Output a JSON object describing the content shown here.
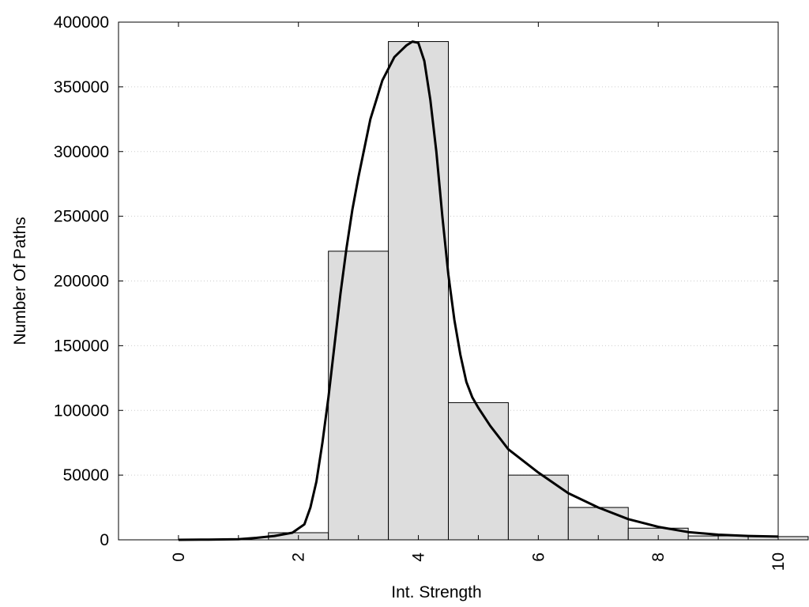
{
  "chart_data": {
    "type": "bar",
    "title": "",
    "xlabel": "Int. Strength",
    "ylabel": "Number Of Paths",
    "xlim": [
      -1,
      10
    ],
    "ylim": [
      0,
      400000
    ],
    "x_ticks": [
      "0",
      "2",
      "4",
      "6",
      "8",
      "10"
    ],
    "y_ticks": [
      "0",
      "50000",
      "100000",
      "150000",
      "200000",
      "250000",
      "300000",
      "350000",
      "400000"
    ],
    "grid": "horizontal dotted",
    "legend": "none",
    "colors": {
      "bar_fill": "#dddddd",
      "bar_stroke": "#000000",
      "curve": "#000000",
      "grid": "#cccccc"
    },
    "bars": {
      "x": [
        0,
        1,
        2,
        3,
        4,
        5,
        6,
        7,
        8,
        9,
        10
      ],
      "values": [
        0,
        0,
        5500,
        223000,
        385000,
        106000,
        50000,
        25000,
        9000,
        3000,
        2500
      ],
      "width": 1
    },
    "curve": {
      "type": "line",
      "x": [
        0,
        0.5,
        1,
        1.3,
        1.6,
        1.9,
        2.1,
        2.2,
        2.3,
        2.4,
        2.5,
        2.6,
        2.7,
        2.8,
        2.9,
        3.0,
        3.2,
        3.4,
        3.6,
        3.8,
        3.9,
        4.0,
        4.1,
        4.2,
        4.3,
        4.4,
        4.5,
        4.6,
        4.7,
        4.8,
        4.9,
        5.0,
        5.2,
        5.5,
        6.0,
        6.5,
        7.0,
        7.5,
        8.0,
        8.5,
        9.0,
        9.5,
        10.0
      ],
      "y": [
        0,
        200,
        500,
        1500,
        3000,
        5500,
        12000,
        25000,
        45000,
        75000,
        110000,
        150000,
        190000,
        225000,
        255000,
        280000,
        325000,
        355000,
        373000,
        382000,
        385000,
        384000,
        370000,
        340000,
        300000,
        250000,
        205000,
        170000,
        143000,
        122000,
        110000,
        102000,
        88000,
        70000,
        52000,
        36000,
        25000,
        16000,
        10000,
        6000,
        4000,
        3000,
        2500
      ]
    }
  }
}
